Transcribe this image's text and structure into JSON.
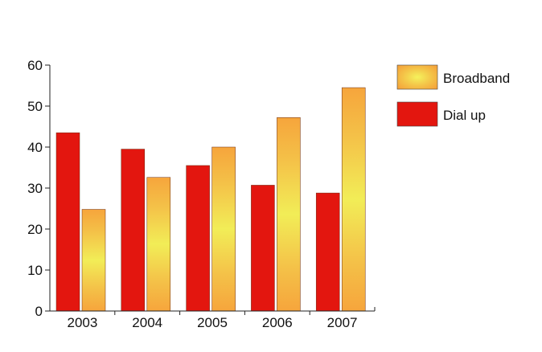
{
  "chart_data": {
    "type": "bar",
    "categories": [
      "2003",
      "2004",
      "2005",
      "2006",
      "2007"
    ],
    "series": [
      {
        "name": "Dial up",
        "values": [
          43.5,
          39.5,
          35.5,
          30.7,
          28.8
        ],
        "style": "solid",
        "color": "#e3160f"
      },
      {
        "name": "Broadband",
        "values": [
          24.8,
          32.6,
          40.0,
          47.2,
          54.5
        ],
        "style": "gradient",
        "colors": [
          "#f6a53c",
          "#f2ed57"
        ]
      }
    ],
    "ylim": [
      0,
      60
    ],
    "yticks": [
      0,
      10,
      20,
      30,
      40,
      50,
      60
    ],
    "legend": {
      "placement": "right",
      "items": [
        {
          "label": "Broadband",
          "style": "gradient"
        },
        {
          "label": "Dial up",
          "style": "solid"
        }
      ]
    },
    "grid": false
  }
}
